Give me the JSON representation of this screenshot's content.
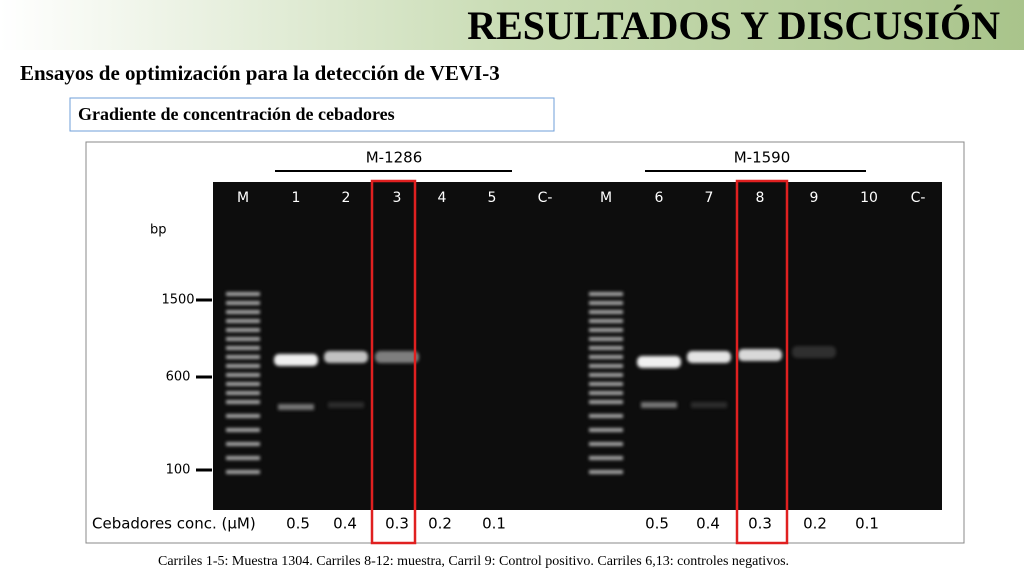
{
  "header": {
    "title": "RESULTADOS Y DISCUSIÓN",
    "subtitle": "Ensayos de optimización para la detección de VEVI-3",
    "section": "Gradiente de concentración de cebadores"
  },
  "gel": {
    "groups": [
      "M-1286",
      "M-1590"
    ],
    "lanes": [
      "M",
      "1",
      "2",
      "3",
      "4",
      "5",
      "C-",
      "M",
      "6",
      "7",
      "8",
      "9",
      "10",
      "C-"
    ],
    "ladder_unit": "bp",
    "ladder": [
      "1500",
      "600",
      "100"
    ],
    "conc_label": "Cebadores conc. (µM)",
    "concentrations": [
      "0.5",
      "0.4",
      "0.3",
      "0.2",
      "0.1",
      "0.5",
      "0.4",
      "0.3",
      "0.2",
      "0.1"
    ]
  },
  "caption": "Carriles 1-5: Muestra 1304. Carriles 8-12: muestra, Carril 9: Control positivo. Carriles 6,13: controles negativos."
}
